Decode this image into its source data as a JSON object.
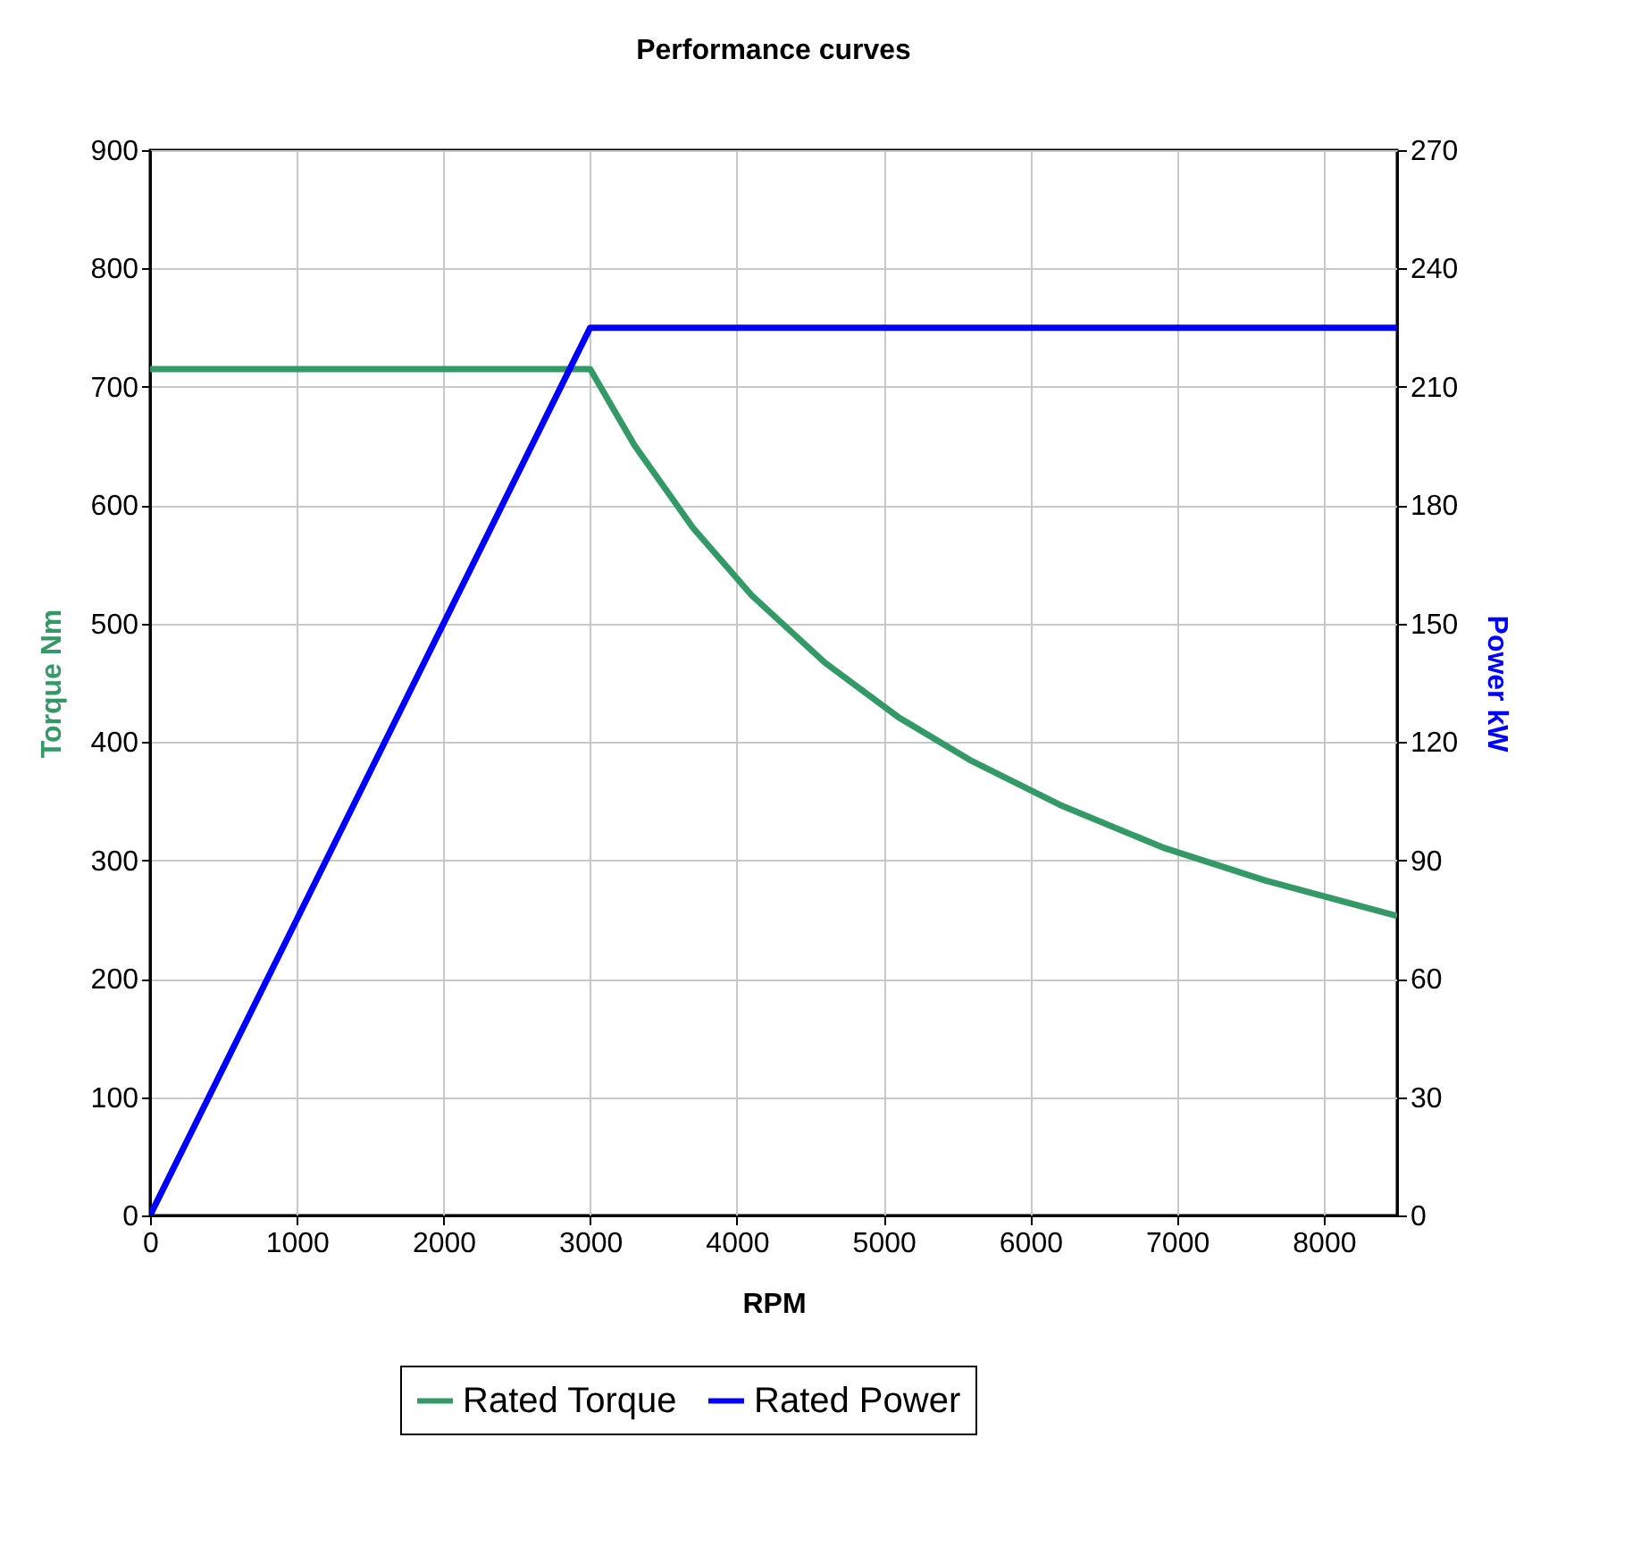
{
  "chart_data": {
    "type": "line",
    "title": "Performance curves",
    "xlabel": "RPM",
    "ylabel": "Torque Nm",
    "y2label": "Power kW",
    "xlim": [
      0,
      8500
    ],
    "xticks": [
      0,
      1000,
      2000,
      3000,
      4000,
      5000,
      6000,
      7000,
      8000
    ],
    "ylim": [
      0,
      900
    ],
    "yticks": [
      0,
      100,
      200,
      300,
      400,
      500,
      600,
      700,
      800,
      900
    ],
    "y2lim": [
      0,
      270
    ],
    "y2ticks": [
      0,
      30,
      60,
      90,
      120,
      150,
      180,
      210,
      240,
      270
    ],
    "grid": true,
    "legend": "bottom",
    "marker": "none",
    "line_style": "solid",
    "series": [
      {
        "name": "Rated Torque",
        "color": "#339966",
        "x": [
          0,
          3000,
          3300,
          3700,
          4100,
          4600,
          5100,
          5600,
          6200,
          6900,
          7600,
          8500
        ],
        "values": [
          715,
          715,
          651,
          581,
          524,
          467,
          421,
          384,
          347,
          311,
          283,
          253
        ]
      },
      {
        "name": "Rated Power",
        "color": "#0000ff",
        "axis": "y2",
        "x": [
          0,
          3000,
          8500
        ],
        "values": [
          0,
          225,
          225
        ]
      }
    ]
  }
}
